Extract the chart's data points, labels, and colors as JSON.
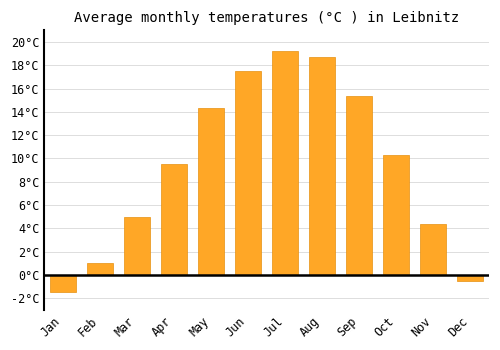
{
  "title": "Average monthly temperatures (°C ) in Leibnitz",
  "months": [
    "Jan",
    "Feb",
    "Mar",
    "Apr",
    "May",
    "Jun",
    "Jul",
    "Aug",
    "Sep",
    "Oct",
    "Nov",
    "Dec"
  ],
  "values": [
    -1.5,
    1.0,
    5.0,
    9.5,
    14.3,
    17.5,
    19.2,
    18.7,
    15.4,
    10.3,
    4.4,
    -0.5
  ],
  "bar_color": "#FFA726",
  "bar_edge_color": "#E69010",
  "ylim": [
    -3,
    21
  ],
  "yticks": [
    -2,
    0,
    2,
    4,
    6,
    8,
    10,
    12,
    14,
    16,
    18,
    20
  ],
  "ytick_labels": [
    "-2°C",
    "0°C",
    "2°C",
    "4°C",
    "6°C",
    "8°C",
    "10°C",
    "12°C",
    "14°C",
    "16°C",
    "18°C",
    "20°C"
  ],
  "grid_color": "#dddddd",
  "background_color": "#ffffff",
  "title_fontsize": 10,
  "tick_fontsize": 8.5,
  "font_family": "monospace",
  "bar_width": 0.7
}
